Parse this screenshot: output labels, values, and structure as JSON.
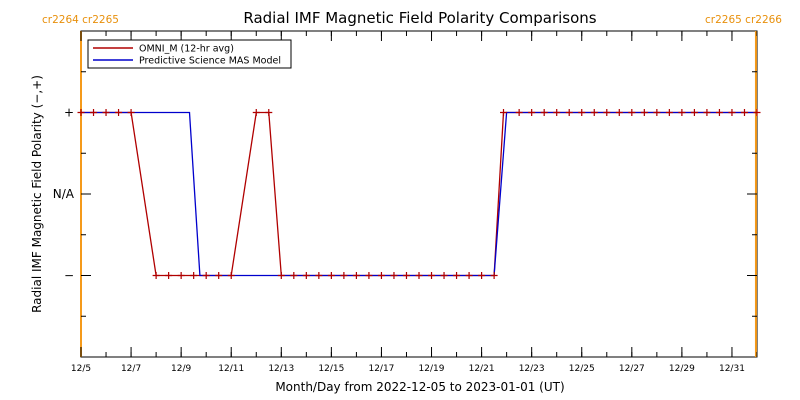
{
  "chart_data": {
    "type": "line",
    "title": "Radial IMF Magnetic Field Polarity Comparisons",
    "xlabel": "Month/Day from 2022-12-05 to 2023-01-01 (UT)",
    "ylabel": "Radial IMF Magnetic Field Polarity (−,+)",
    "x_start": "2022-12-05",
    "x_end": "2023-01-01",
    "xlim": [
      "2022-12-05",
      "2023-01-01"
    ],
    "ylim": [
      -2,
      2
    ],
    "x_ticks": [
      {
        "date": "2022-12-05",
        "label": "12/5"
      },
      {
        "date": "2022-12-07",
        "label": "12/7"
      },
      {
        "date": "2022-12-09",
        "label": "12/9"
      },
      {
        "date": "2022-12-11",
        "label": "12/11"
      },
      {
        "date": "2022-12-13",
        "label": "12/13"
      },
      {
        "date": "2022-12-15",
        "label": "12/15"
      },
      {
        "date": "2022-12-17",
        "label": "12/17"
      },
      {
        "date": "2022-12-19",
        "label": "12/19"
      },
      {
        "date": "2022-12-21",
        "label": "12/21"
      },
      {
        "date": "2022-12-23",
        "label": "12/23"
      },
      {
        "date": "2022-12-25",
        "label": "12/25"
      },
      {
        "date": "2022-12-27",
        "label": "12/27"
      },
      {
        "date": "2022-12-29",
        "label": "12/29"
      },
      {
        "date": "2022-12-31",
        "label": "12/31"
      }
    ],
    "y_ticks": [
      {
        "value": 1,
        "label": "+"
      },
      {
        "value": 0,
        "label": "N/A"
      },
      {
        "value": -1,
        "label": "−"
      }
    ],
    "carrington_markers": [
      {
        "label": "cr2264 cr2265",
        "position": "top-left"
      },
      {
        "label": "cr2265 cr2266",
        "position": "top-right"
      }
    ],
    "boundary_lines": [
      {
        "date": "2022-12-05",
        "color": "#f59a1a"
      },
      {
        "date": "2022-12-31T23:00",
        "color": "#f59a1a"
      }
    ],
    "legend": {
      "position": "top-left"
    },
    "series": [
      {
        "name": "OMNI_M (12-hr avg)",
        "color": "#b00000",
        "points": [
          {
            "x": "2022-12-05T00:00",
            "y": 1
          },
          {
            "x": "2022-12-05T12:00",
            "y": 1
          },
          {
            "x": "2022-12-06T00:00",
            "y": 1
          },
          {
            "x": "2022-12-06T12:00",
            "y": 1
          },
          {
            "x": "2022-12-07T00:00",
            "y": 1
          },
          {
            "x": "2022-12-08T00:00",
            "y": -1
          },
          {
            "x": "2022-12-08T12:00",
            "y": -1
          },
          {
            "x": "2022-12-09T00:00",
            "y": -1
          },
          {
            "x": "2022-12-09T12:00",
            "y": -1
          },
          {
            "x": "2022-12-10T00:00",
            "y": -1
          },
          {
            "x": "2022-12-10T12:00",
            "y": -1
          },
          {
            "x": "2022-12-11T00:00",
            "y": -1
          },
          {
            "x": "2022-12-12T00:00",
            "y": 1
          },
          {
            "x": "2022-12-12T12:00",
            "y": 1
          },
          {
            "x": "2022-12-13T00:00",
            "y": -1
          },
          {
            "x": "2022-12-13T12:00",
            "y": -1
          },
          {
            "x": "2022-12-14T00:00",
            "y": -1
          },
          {
            "x": "2022-12-14T12:00",
            "y": -1
          },
          {
            "x": "2022-12-15T00:00",
            "y": -1
          },
          {
            "x": "2022-12-15T12:00",
            "y": -1
          },
          {
            "x": "2022-12-16T00:00",
            "y": -1
          },
          {
            "x": "2022-12-16T12:00",
            "y": -1
          },
          {
            "x": "2022-12-17T00:00",
            "y": -1
          },
          {
            "x": "2022-12-17T12:00",
            "y": -1
          },
          {
            "x": "2022-12-18T00:00",
            "y": -1
          },
          {
            "x": "2022-12-18T12:00",
            "y": -1
          },
          {
            "x": "2022-12-19T00:00",
            "y": -1
          },
          {
            "x": "2022-12-19T12:00",
            "y": -1
          },
          {
            "x": "2022-12-20T00:00",
            "y": -1
          },
          {
            "x": "2022-12-20T12:00",
            "y": -1
          },
          {
            "x": "2022-12-21T00:00",
            "y": -1
          },
          {
            "x": "2022-12-21T12:00",
            "y": -1
          },
          {
            "x": "2022-12-21T21:00",
            "y": 1
          },
          {
            "x": "2022-12-22T12:00",
            "y": 1
          },
          {
            "x": "2022-12-23T00:00",
            "y": 1
          },
          {
            "x": "2022-12-23T12:00",
            "y": 1
          },
          {
            "x": "2022-12-24T00:00",
            "y": 1
          },
          {
            "x": "2022-12-24T12:00",
            "y": 1
          },
          {
            "x": "2022-12-25T00:00",
            "y": 1
          },
          {
            "x": "2022-12-25T12:00",
            "y": 1
          },
          {
            "x": "2022-12-26T00:00",
            "y": 1
          },
          {
            "x": "2022-12-26T12:00",
            "y": 1
          },
          {
            "x": "2022-12-27T00:00",
            "y": 1
          },
          {
            "x": "2022-12-27T12:00",
            "y": 1
          },
          {
            "x": "2022-12-28T00:00",
            "y": 1
          },
          {
            "x": "2022-12-28T12:00",
            "y": 1
          },
          {
            "x": "2022-12-29T00:00",
            "y": 1
          },
          {
            "x": "2022-12-29T12:00",
            "y": 1
          },
          {
            "x": "2022-12-30T00:00",
            "y": 1
          },
          {
            "x": "2022-12-30T12:00",
            "y": 1
          },
          {
            "x": "2022-12-31T00:00",
            "y": 1
          },
          {
            "x": "2022-12-31T12:00",
            "y": 1
          },
          {
            "x": "2023-01-01T00:00",
            "y": 1
          }
        ]
      },
      {
        "name": "Predictive Science MAS Model",
        "color": "#0000cc",
        "points": [
          {
            "x": "2022-12-05T00:00",
            "y": 1
          },
          {
            "x": "2022-12-09T08:00",
            "y": 1
          },
          {
            "x": "2022-12-09T18:00",
            "y": -1
          },
          {
            "x": "2022-12-21T12:00",
            "y": -1
          },
          {
            "x": "2022-12-22T00:00",
            "y": 1
          },
          {
            "x": "2023-01-01T00:00",
            "y": 1
          }
        ]
      }
    ]
  }
}
